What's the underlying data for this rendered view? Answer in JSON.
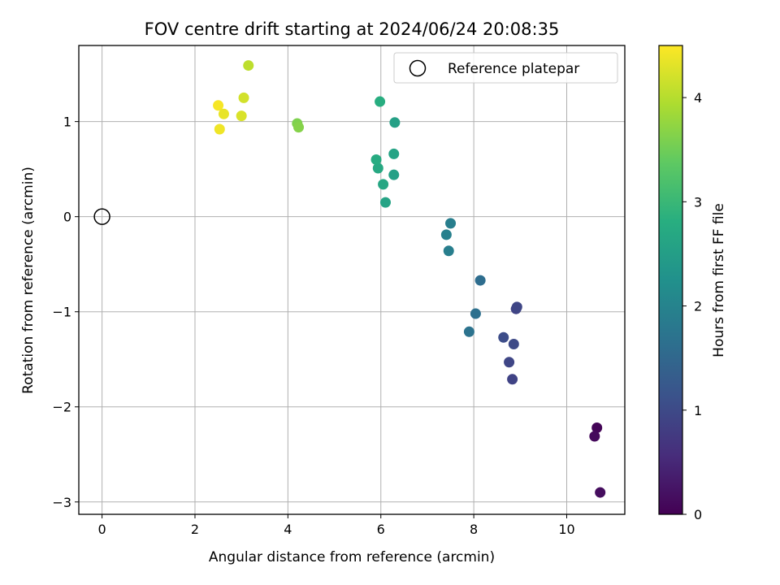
{
  "chart_data": {
    "type": "scatter",
    "title": "FOV centre drift starting at 2024/06/24 20:08:35",
    "xlabel": "Angular distance from reference (arcmin)",
    "ylabel": "Rotation from reference (arcmin)",
    "xlim": [
      -0.5,
      11.25
    ],
    "ylim": [
      -3.13,
      1.8
    ],
    "xticks": [
      0,
      2,
      4,
      6,
      8,
      10
    ],
    "yticks": [
      -3,
      -2,
      -1,
      0,
      1
    ],
    "grid": true,
    "legend": {
      "placement": "top-right",
      "entries": [
        "Reference platepar"
      ]
    },
    "reference": {
      "x": 0.0,
      "y": 0.0,
      "label": "Reference platepar"
    },
    "colorbar": {
      "label": "Hours from first FF file",
      "range": [
        0,
        4.5
      ],
      "ticks": [
        0,
        1,
        2,
        3,
        4
      ],
      "colormap": "viridis"
    },
    "points": [
      {
        "x": 10.65,
        "y": -2.22,
        "hours": 0.05
      },
      {
        "x": 10.6,
        "y": -2.31,
        "hours": 0.1
      },
      {
        "x": 10.72,
        "y": -2.9,
        "hours": 0.15
      },
      {
        "x": 8.83,
        "y": -1.71,
        "hours": 0.9
      },
      {
        "x": 8.76,
        "y": -1.53,
        "hours": 0.95
      },
      {
        "x": 8.86,
        "y": -1.34,
        "hours": 1.0
      },
      {
        "x": 8.64,
        "y": -1.27,
        "hours": 1.05
      },
      {
        "x": 8.91,
        "y": -0.97,
        "hours": 0.9
      },
      {
        "x": 8.93,
        "y": -0.95,
        "hours": 0.95
      },
      {
        "x": 8.14,
        "y": -0.67,
        "hours": 1.6
      },
      {
        "x": 8.04,
        "y": -1.02,
        "hours": 1.65
      },
      {
        "x": 7.9,
        "y": -1.21,
        "hours": 1.7
      },
      {
        "x": 7.5,
        "y": -0.07,
        "hours": 1.9
      },
      {
        "x": 7.41,
        "y": -0.19,
        "hours": 1.95
      },
      {
        "x": 7.46,
        "y": -0.36,
        "hours": 1.9
      },
      {
        "x": 6.1,
        "y": 0.15,
        "hours": 2.6
      },
      {
        "x": 6.05,
        "y": 0.34,
        "hours": 2.65
      },
      {
        "x": 6.28,
        "y": 0.44,
        "hours": 2.55
      },
      {
        "x": 5.94,
        "y": 0.51,
        "hours": 2.7
      },
      {
        "x": 5.9,
        "y": 0.6,
        "hours": 2.75
      },
      {
        "x": 6.28,
        "y": 0.66,
        "hours": 2.6
      },
      {
        "x": 6.3,
        "y": 0.99,
        "hours": 2.55
      },
      {
        "x": 5.98,
        "y": 1.21,
        "hours": 2.8
      },
      {
        "x": 4.2,
        "y": 0.98,
        "hours": 3.6
      },
      {
        "x": 4.23,
        "y": 0.94,
        "hours": 3.65
      },
      {
        "x": 3.15,
        "y": 1.59,
        "hours": 4.05
      },
      {
        "x": 3.05,
        "y": 1.25,
        "hours": 4.2
      },
      {
        "x": 2.5,
        "y": 1.17,
        "hours": 4.45
      },
      {
        "x": 2.62,
        "y": 1.08,
        "hours": 4.35
      },
      {
        "x": 3.0,
        "y": 1.06,
        "hours": 4.25
      },
      {
        "x": 2.53,
        "y": 0.92,
        "hours": 4.4
      }
    ]
  }
}
